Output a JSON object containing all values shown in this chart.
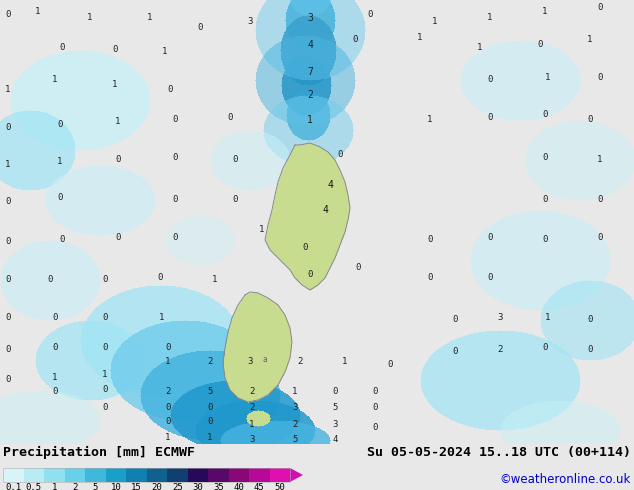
{
  "title_left": "Precipitation [mm] ECMWF",
  "title_right": "Su 05-05-2024 15..18 UTC (00+114)",
  "credit": "©weatheronline.co.uk",
  "colorbar_label_values": [
    "0.1",
    "0.5",
    "1",
    "2",
    "5",
    "10",
    "15",
    "20",
    "25",
    "30",
    "35",
    "40",
    "45",
    "50"
  ],
  "colorbar_colors": [
    "#b0e8f0",
    "#88d8ec",
    "#60c8e8",
    "#38b8e0",
    "#10a0d0",
    "#1080b8",
    "#1060a0",
    "#104088",
    "#102070",
    "#300868",
    "#600878",
    "#900888",
    "#c008a0",
    "#e010b8"
  ],
  "bg_color": "#e8e8e8",
  "ocean_bg": "#e8e8e8",
  "precip_colors": {
    "very_light": "#c8f0f8",
    "light": "#a0e0f0",
    "medium_light": "#78c8e8",
    "medium": "#50b0d8",
    "medium_dark": "#2890c0",
    "dark": "#1070a8",
    "very_dark": "#0050888"
  },
  "land_color": "#c8dc90",
  "land_border": "#888888"
}
